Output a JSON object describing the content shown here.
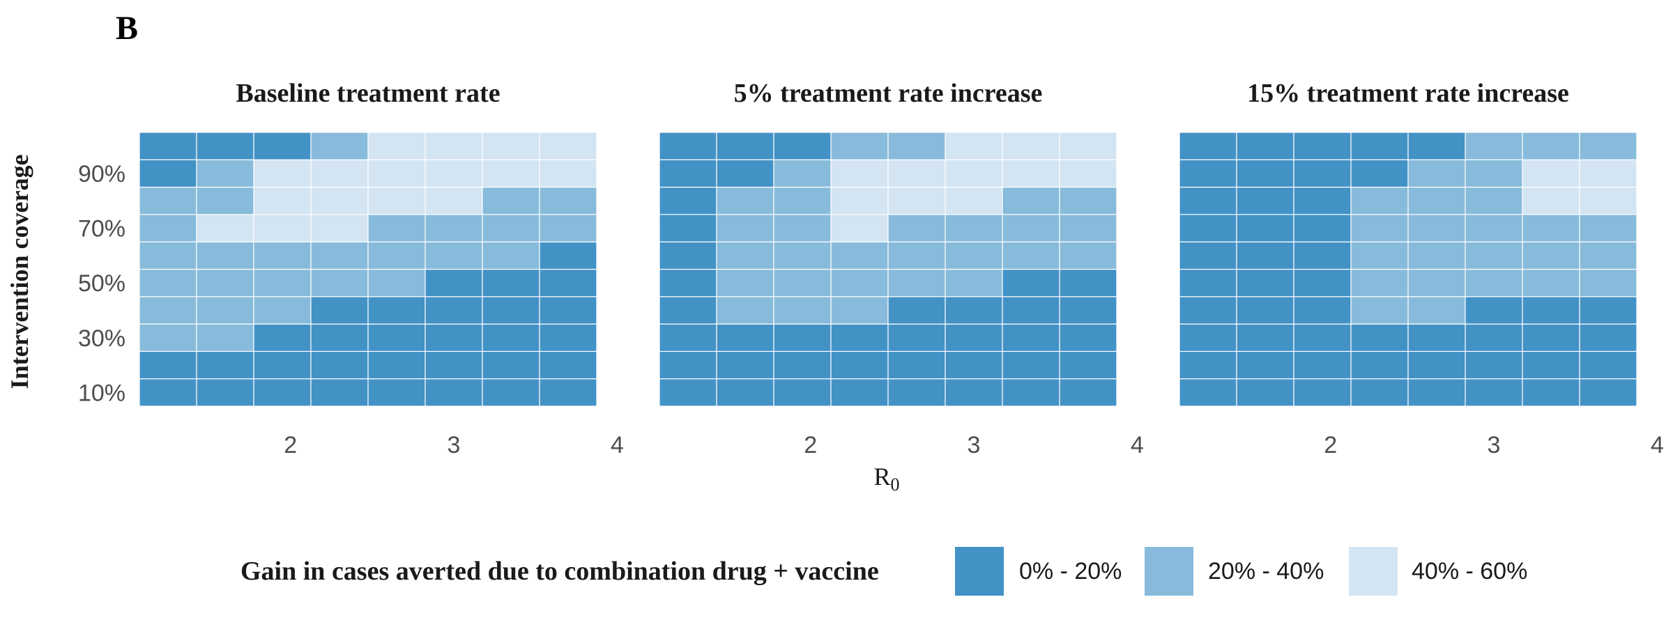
{
  "panel_label": "B",
  "colors": {
    "low": "#4292c6",
    "mid": "#88bbdb",
    "high": "#d3e4f2"
  },
  "chart_data": [
    {
      "type": "heatmap",
      "title": "Baseline treatment rate",
      "x": [
        1.25,
        1.6,
        1.95,
        2.3,
        2.65,
        3.0,
        3.35,
        3.7
      ],
      "y": [
        "10%",
        "20%",
        "30%",
        "40%",
        "50%",
        "60%",
        "70%",
        "80%",
        "90%",
        "100%"
      ],
      "x_ticks": [
        "2",
        "3",
        "4"
      ],
      "y_ticks": [
        "10%",
        "30%",
        "50%",
        "70%",
        "90%"
      ],
      "values": [
        [
          0,
          0,
          0,
          0,
          0,
          0,
          0,
          0
        ],
        [
          0,
          0,
          0,
          0,
          0,
          0,
          0,
          0
        ],
        [
          1,
          1,
          0,
          0,
          0,
          0,
          0,
          0
        ],
        [
          1,
          1,
          1,
          0,
          0,
          0,
          0,
          0
        ],
        [
          1,
          1,
          1,
          1,
          1,
          0,
          0,
          0
        ],
        [
          1,
          1,
          1,
          1,
          1,
          1,
          1,
          0
        ],
        [
          1,
          2,
          2,
          2,
          1,
          1,
          1,
          1
        ],
        [
          1,
          1,
          2,
          2,
          2,
          2,
          1,
          1
        ],
        [
          0,
          1,
          2,
          2,
          2,
          2,
          2,
          2
        ],
        [
          0,
          0,
          0,
          1,
          2,
          2,
          2,
          2
        ]
      ]
    },
    {
      "type": "heatmap",
      "title": "5% treatment rate increase",
      "x": [
        1.25,
        1.6,
        1.95,
        2.3,
        2.65,
        3.0,
        3.35,
        3.7
      ],
      "y": [
        "10%",
        "20%",
        "30%",
        "40%",
        "50%",
        "60%",
        "70%",
        "80%",
        "90%",
        "100%"
      ],
      "x_ticks": [
        "2",
        "3",
        "4"
      ],
      "y_ticks": [
        "10%",
        "30%",
        "50%",
        "70%",
        "90%"
      ],
      "values": [
        [
          0,
          0,
          0,
          0,
          0,
          0,
          0,
          0
        ],
        [
          0,
          0,
          0,
          0,
          0,
          0,
          0,
          0
        ],
        [
          0,
          0,
          0,
          0,
          0,
          0,
          0,
          0
        ],
        [
          0,
          1,
          1,
          1,
          0,
          0,
          0,
          0
        ],
        [
          0,
          1,
          1,
          1,
          1,
          1,
          0,
          0
        ],
        [
          0,
          1,
          1,
          1,
          1,
          1,
          1,
          1
        ],
        [
          0,
          1,
          1,
          2,
          1,
          1,
          1,
          1
        ],
        [
          0,
          1,
          1,
          2,
          2,
          2,
          1,
          1
        ],
        [
          0,
          0,
          1,
          2,
          2,
          2,
          2,
          2
        ],
        [
          0,
          0,
          0,
          1,
          1,
          2,
          2,
          2
        ]
      ]
    },
    {
      "type": "heatmap",
      "title": "15% treatment rate increase",
      "x": [
        1.25,
        1.6,
        1.95,
        2.3,
        2.65,
        3.0,
        3.35,
        3.7
      ],
      "y": [
        "10%",
        "20%",
        "30%",
        "40%",
        "50%",
        "60%",
        "70%",
        "80%",
        "90%",
        "100%"
      ],
      "x_ticks": [
        "2",
        "3",
        "4"
      ],
      "y_ticks": [
        "10%",
        "30%",
        "50%",
        "70%",
        "90%"
      ],
      "values": [
        [
          0,
          0,
          0,
          0,
          0,
          0,
          0,
          0
        ],
        [
          0,
          0,
          0,
          0,
          0,
          0,
          0,
          0
        ],
        [
          0,
          0,
          0,
          0,
          0,
          0,
          0,
          0
        ],
        [
          0,
          0,
          0,
          1,
          1,
          0,
          0,
          0
        ],
        [
          0,
          0,
          0,
          1,
          1,
          1,
          1,
          1
        ],
        [
          0,
          0,
          0,
          1,
          1,
          1,
          1,
          1
        ],
        [
          0,
          0,
          0,
          1,
          1,
          1,
          1,
          1
        ],
        [
          0,
          0,
          0,
          1,
          1,
          1,
          2,
          2
        ],
        [
          0,
          0,
          0,
          0,
          1,
          1,
          2,
          2
        ],
        [
          0,
          0,
          0,
          0,
          0,
          1,
          1,
          1
        ]
      ]
    }
  ],
  "axes": {
    "xlabel_main": "R",
    "xlabel_sub": "0",
    "ylabel": "Intervention coverage",
    "xlim": [
      1.075,
      3.875
    ],
    "x_tick_values": [
      2,
      3,
      4
    ]
  },
  "legend": {
    "title": "Gain in cases averted due to combination drug + vaccine",
    "items": [
      "0% - 20%",
      "20% - 40%",
      "40% - 60%"
    ]
  }
}
